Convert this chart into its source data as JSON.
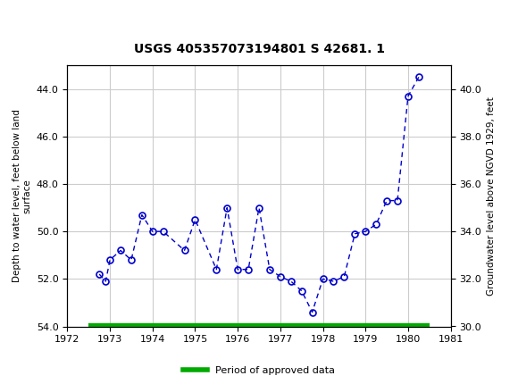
{
  "title": "USGS 405357073194801 S 42681. 1",
  "xlabel": "",
  "ylabel_left": "Depth to water level, feet below land\nsurface",
  "ylabel_right": "Groundwater level above NGVD 1929, feet",
  "header_color": "#1a6b3c",
  "background_color": "#ffffff",
  "plot_bg_color": "#ffffff",
  "grid_color": "#cccccc",
  "line_color": "#0000cc",
  "marker_color": "#0000cc",
  "legend_label": "Period of approved data",
  "legend_color": "#00aa00",
  "x_data": [
    1972.75,
    1972.9,
    1973.0,
    1973.25,
    1973.5,
    1973.75,
    1974.0,
    1974.25,
    1974.75,
    1975.0,
    1975.5,
    1975.75,
    1976.0,
    1976.25,
    1976.5,
    1976.75,
    1977.0,
    1977.25,
    1977.5,
    1977.75,
    1978.0,
    1978.25,
    1978.5,
    1978.75,
    1979.0,
    1979.25,
    1979.5,
    1979.75,
    1980.0,
    1980.25
  ],
  "y_data": [
    51.8,
    52.1,
    51.2,
    50.8,
    51.2,
    49.3,
    50.0,
    50.0,
    50.8,
    49.5,
    51.6,
    49.0,
    51.6,
    51.6,
    49.0,
    51.6,
    51.9,
    52.1,
    52.5,
    53.4,
    52.0,
    52.1,
    51.9,
    50.1,
    50.0,
    49.7,
    48.7,
    48.7,
    44.3,
    43.5
  ],
  "ylim_left": [
    54.0,
    43.0
  ],
  "ylim_right": [
    30.0,
    41.0
  ],
  "xlim": [
    1972,
    1981
  ],
  "xticks": [
    1972,
    1973,
    1974,
    1975,
    1976,
    1977,
    1978,
    1979,
    1980,
    1981
  ],
  "yticks_left": [
    44.0,
    46.0,
    48.0,
    50.0,
    52.0,
    54.0
  ],
  "yticks_right": [
    30.0,
    32.0,
    34.0,
    36.0,
    38.0,
    40.0
  ],
  "bar_y": 54.0,
  "bar_xstart": 1972.5,
  "bar_xend": 1980.5
}
